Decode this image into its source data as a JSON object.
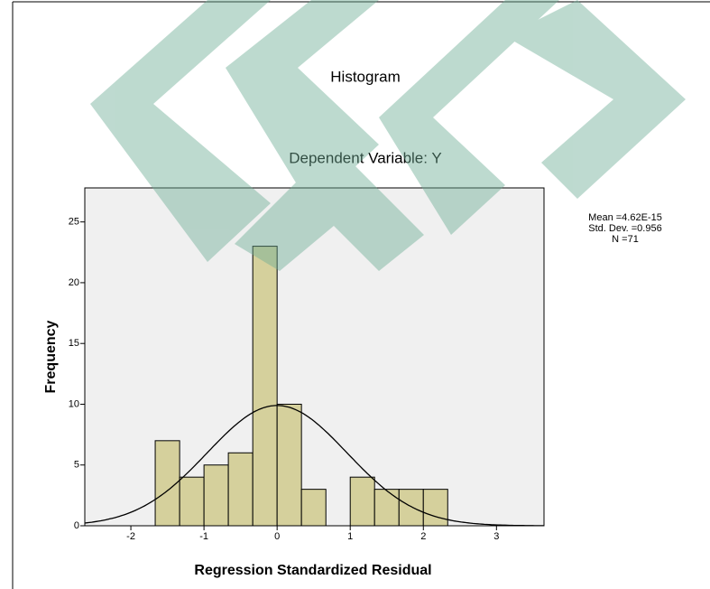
{
  "chart_data": {
    "type": "histogram",
    "title": "Histogram",
    "subtitle": "Dependent Variable: Y",
    "x_label": "Regression Standardized Residual",
    "y_label": "Frequency",
    "bins": [
      -1.667,
      -1.333,
      -1,
      -0.667,
      -0.333,
      0,
      0.333,
      0.667,
      1,
      1.333,
      1.667,
      2,
      2.333
    ],
    "values": [
      7,
      4,
      5,
      6,
      23,
      10,
      3,
      0,
      4,
      3,
      3,
      3
    ],
    "color": "#d5d09c",
    "xlim": [
      -2.63,
      3.65
    ],
    "xticks": [
      -2,
      -1,
      0,
      1,
      2,
      3
    ],
    "ylim": [
      0,
      27.8
    ],
    "yticks": [
      0,
      5,
      10,
      15,
      20,
      25
    ],
    "stats": [
      {
        "value": 4.62e-15,
        "label": "Mean =4.62E-15"
      },
      {
        "value": 0.956,
        "label": "Std. Dev. =0.956"
      },
      {
        "value": 71,
        "label": "N =71"
      }
    ]
  }
}
